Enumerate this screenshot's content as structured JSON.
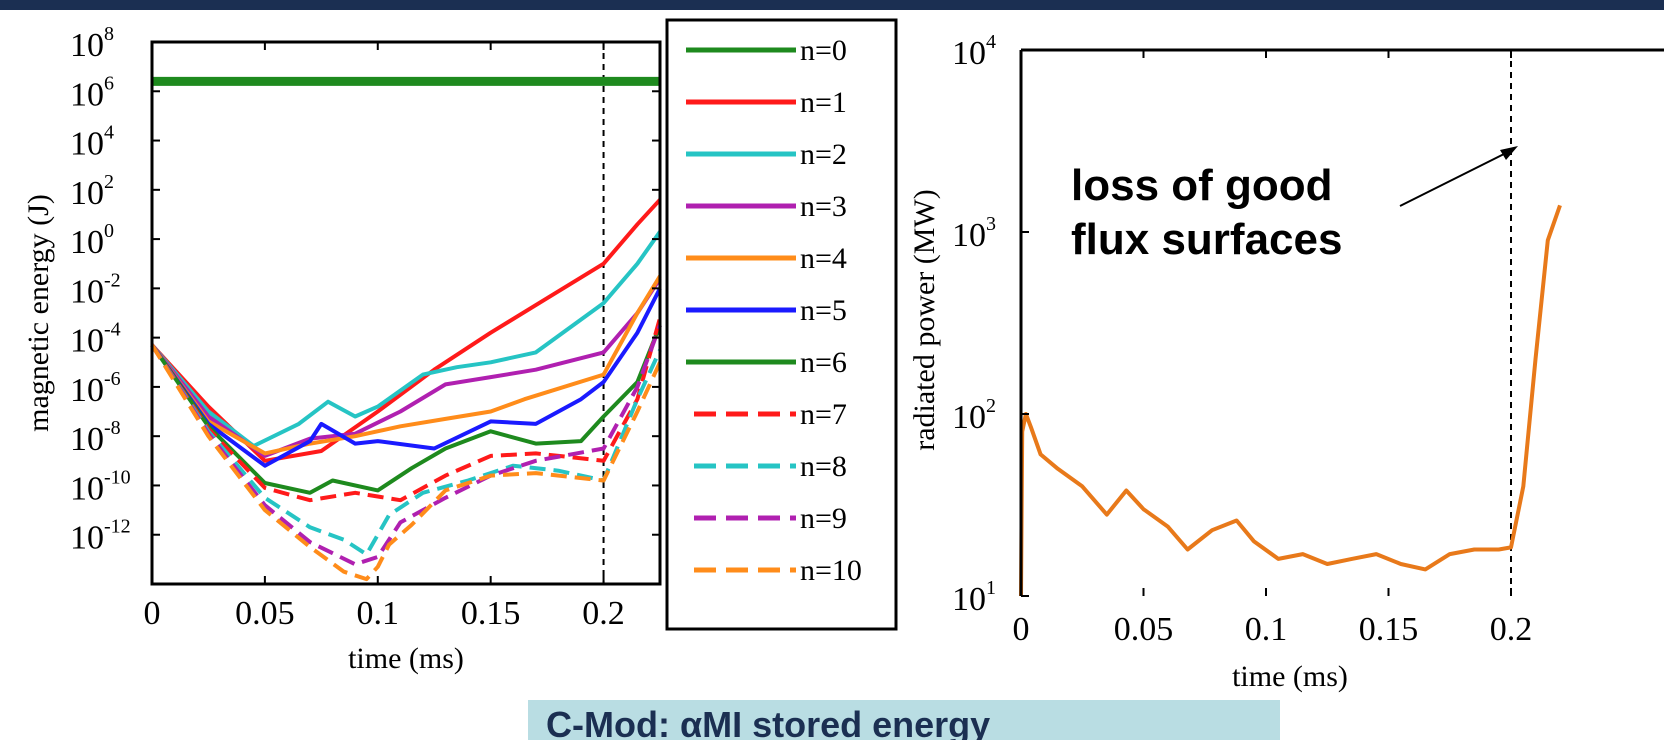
{
  "chart_data": [
    {
      "type": "line",
      "yscale": "log",
      "xlabel": "time (ms)",
      "ylabel": "magnetic energy (J)",
      "xlim": [
        0,
        0.225
      ],
      "ylim": [
        1e-14,
        100000000.0
      ],
      "xticks": [
        {
          "v": 0,
          "label": "0"
        },
        {
          "v": 0.05,
          "label": "0.05"
        },
        {
          "v": 0.1,
          "label": "0.1"
        },
        {
          "v": 0.15,
          "label": "0.15"
        },
        {
          "v": 0.2,
          "label": "0.2"
        }
      ],
      "yticks": [
        {
          "e": 8,
          "base": "10",
          "exp": "8"
        },
        {
          "e": 6,
          "base": "10",
          "exp": "6"
        },
        {
          "e": 4,
          "base": "10",
          "exp": "4"
        },
        {
          "e": 2,
          "base": "10",
          "exp": "2"
        },
        {
          "e": 0,
          "base": "10",
          "exp": "0"
        },
        {
          "e": -2,
          "base": "10",
          "exp": "-2"
        },
        {
          "e": -4,
          "base": "10",
          "exp": "-4"
        },
        {
          "e": -6,
          "base": "10",
          "exp": "-6"
        },
        {
          "e": -8,
          "base": "10",
          "exp": "-8"
        },
        {
          "e": -10,
          "base": "10",
          "exp": "-10"
        },
        {
          "e": -12,
          "base": "10",
          "exp": "-12"
        }
      ],
      "vline_x": 0.2,
      "legend_position": "right, outside",
      "series": [
        {
          "name": "n=0",
          "color": "#1e8a1e",
          "dash": false,
          "width": 9,
          "x": [
            0,
            0.225
          ],
          "log10": [
            6.4,
            6.4
          ]
        },
        {
          "name": "n=1",
          "color": "#ff1a1a",
          "dash": false,
          "width": 4,
          "x": [
            0,
            0.025,
            0.05,
            0.075,
            0.1,
            0.125,
            0.15,
            0.175,
            0.2,
            0.215,
            0.225
          ],
          "log10": [
            -4.3,
            -6.8,
            -9.0,
            -8.6,
            -7.0,
            -5.3,
            -3.8,
            -2.4,
            -1.0,
            0.6,
            1.6
          ]
        },
        {
          "name": "n=2",
          "color": "#26c4c4",
          "dash": false,
          "width": 4,
          "x": [
            0,
            0.025,
            0.045,
            0.065,
            0.078,
            0.09,
            0.1,
            0.12,
            0.135,
            0.15,
            0.17,
            0.2,
            0.215,
            0.225
          ],
          "log10": [
            -4.3,
            -7.0,
            -8.4,
            -7.5,
            -6.6,
            -7.2,
            -6.8,
            -5.5,
            -5.2,
            -5.0,
            -4.6,
            -2.6,
            -1.0,
            0.3
          ]
        },
        {
          "name": "n=3",
          "color": "#b020b0",
          "dash": false,
          "width": 4,
          "x": [
            0,
            0.025,
            0.05,
            0.07,
            0.09,
            0.11,
            0.13,
            0.15,
            0.17,
            0.2,
            0.215,
            0.225
          ],
          "log10": [
            -4.3,
            -7.2,
            -8.8,
            -8.1,
            -7.9,
            -7.0,
            -5.9,
            -5.6,
            -5.3,
            -4.6,
            -3.0,
            -1.6
          ]
        },
        {
          "name": "n=4",
          "color": "#ff8c1a",
          "dash": false,
          "width": 4,
          "x": [
            0,
            0.025,
            0.05,
            0.07,
            0.09,
            0.11,
            0.13,
            0.15,
            0.165,
            0.2,
            0.215,
            0.225
          ],
          "log10": [
            -4.3,
            -7.4,
            -8.7,
            -8.3,
            -8.0,
            -7.6,
            -7.3,
            -7.0,
            -6.5,
            -5.5,
            -3.0,
            -1.5
          ]
        },
        {
          "name": "n=5",
          "color": "#1a1aff",
          "dash": false,
          "width": 4,
          "x": [
            0,
            0.025,
            0.05,
            0.07,
            0.075,
            0.09,
            0.1,
            0.125,
            0.15,
            0.17,
            0.19,
            0.2,
            0.215,
            0.225
          ],
          "log10": [
            -4.3,
            -7.5,
            -9.2,
            -8.2,
            -7.5,
            -8.3,
            -8.2,
            -8.5,
            -7.4,
            -7.5,
            -6.5,
            -5.8,
            -3.8,
            -2.0
          ]
        },
        {
          "name": "n=6",
          "color": "#1e8a1e",
          "dash": false,
          "width": 4,
          "x": [
            0,
            0.025,
            0.05,
            0.07,
            0.08,
            0.1,
            0.115,
            0.13,
            0.15,
            0.17,
            0.19,
            0.2,
            0.215,
            0.225
          ],
          "log10": [
            -4.3,
            -7.6,
            -9.9,
            -10.3,
            -9.8,
            -10.2,
            -9.3,
            -8.5,
            -7.8,
            -8.3,
            -8.2,
            -7.2,
            -5.8,
            -3.5
          ]
        },
        {
          "name": "n=7",
          "color": "#ff1a1a",
          "dash": true,
          "width": 4,
          "x": [
            0,
            0.025,
            0.05,
            0.07,
            0.09,
            0.11,
            0.13,
            0.15,
            0.17,
            0.2,
            0.215,
            0.225
          ],
          "log10": [
            -4.3,
            -7.7,
            -10.1,
            -10.6,
            -10.3,
            -10.6,
            -9.6,
            -8.8,
            -8.7,
            -9.0,
            -6.5,
            -3.2
          ]
        },
        {
          "name": "n=8",
          "color": "#26c4c4",
          "dash": true,
          "width": 4,
          "x": [
            0,
            0.025,
            0.05,
            0.07,
            0.085,
            0.095,
            0.105,
            0.12,
            0.14,
            0.16,
            0.18,
            0.2,
            0.215,
            0.225
          ],
          "log10": [
            -4.3,
            -7.8,
            -10.5,
            -11.7,
            -12.2,
            -12.8,
            -11.2,
            -10.3,
            -9.8,
            -9.2,
            -9.4,
            -9.8,
            -6.5,
            -4.5
          ]
        },
        {
          "name": "n=9",
          "color": "#b020b0",
          "dash": true,
          "width": 4,
          "x": [
            0,
            0.025,
            0.05,
            0.07,
            0.09,
            0.1,
            0.11,
            0.13,
            0.15,
            0.17,
            0.2,
            0.215,
            0.225
          ],
          "log10": [
            -4.3,
            -7.9,
            -10.8,
            -12.3,
            -13.2,
            -12.9,
            -11.5,
            -10.5,
            -9.6,
            -9.0,
            -8.5,
            -6.0,
            -3.5
          ]
        },
        {
          "name": "n=10",
          "color": "#ff8c1a",
          "dash": true,
          "width": 4,
          "x": [
            0,
            0.025,
            0.05,
            0.07,
            0.085,
            0.095,
            0.1,
            0.105,
            0.115,
            0.13,
            0.15,
            0.17,
            0.2,
            0.215,
            0.225
          ],
          "log10": [
            -4.3,
            -8.0,
            -11.0,
            -12.5,
            -13.5,
            -13.8,
            -13.3,
            -12.4,
            -11.6,
            -10.2,
            -9.6,
            -9.5,
            -9.8,
            -7.0,
            -5.0
          ]
        }
      ]
    },
    {
      "type": "line",
      "yscale": "log",
      "xlabel": "time (ms)",
      "ylabel": "radiated power (MW)",
      "xlim": [
        0,
        0.22
      ],
      "ylim": [
        10,
        10000
      ],
      "xticks": [
        {
          "v": 0,
          "label": "0"
        },
        {
          "v": 0.05,
          "label": "0.05"
        },
        {
          "v": 0.1,
          "label": "0.1"
        },
        {
          "v": 0.15,
          "label": "0.15"
        },
        {
          "v": 0.2,
          "label": "0.2"
        }
      ],
      "yticks": [
        {
          "e": 1,
          "base": "10",
          "exp": "1"
        },
        {
          "e": 2,
          "base": "10",
          "exp": "2"
        },
        {
          "e": 3,
          "base": "10",
          "exp": "3"
        },
        {
          "e": 4,
          "base": "10",
          "exp": "4"
        }
      ],
      "vline_x": 0.2,
      "annotation": {
        "lines": [
          "loss of good",
          "flux surfaces"
        ]
      },
      "series": [
        {
          "color": "#e8791a",
          "x": [
            0.0,
            0.0005,
            0.002,
            0.004,
            0.008,
            0.015,
            0.025,
            0.035,
            0.043,
            0.05,
            0.06,
            0.068,
            0.078,
            0.088,
            0.095,
            0.105,
            0.115,
            0.125,
            0.135,
            0.145,
            0.155,
            0.165,
            0.175,
            0.185,
            0.195,
            0.2,
            0.205,
            0.21,
            0.215,
            0.22
          ],
          "y": [
            10,
            80,
            100,
            85,
            60,
            50,
            40,
            28,
            38,
            30,
            24,
            18,
            23,
            26,
            20,
            16,
            17,
            15,
            16,
            17,
            15,
            14,
            17,
            18,
            18,
            18.5,
            40,
            200,
            900,
            1400
          ]
        }
      ]
    }
  ],
  "caption": "C-Mod: αMI stored energy"
}
